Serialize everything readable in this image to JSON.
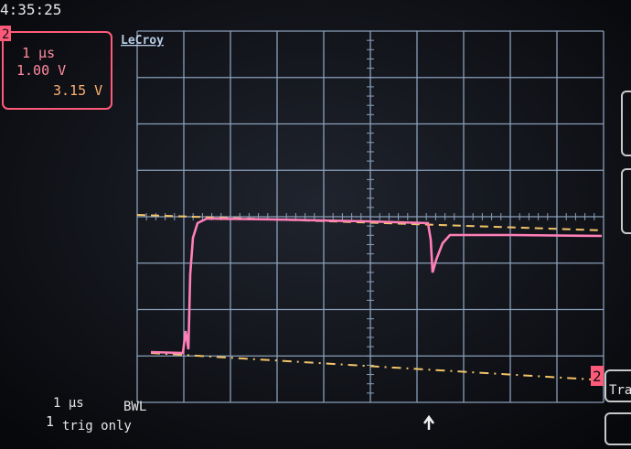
{
  "header": {
    "time": "4:35:25"
  },
  "channel_box": {
    "badge": "2",
    "timebase": "1 μs",
    "volts_per_div": "1.00 V",
    "offset": "3.15 V"
  },
  "brand": "LeCroy",
  "trace_marker": "2",
  "footer": {
    "timebase": "1 μs",
    "bandwidth": "BWL",
    "trigger_channel": "1",
    "trigger_mode": "trig only"
  },
  "side_button": "Tra"
}
